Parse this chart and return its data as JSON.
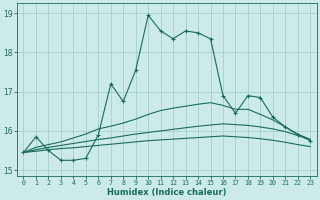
{
  "xlabel": "Humidex (Indice chaleur)",
  "xlim": [
    -0.5,
    23.5
  ],
  "ylim": [
    14.85,
    19.25
  ],
  "yticks": [
    15,
    16,
    17,
    18,
    19
  ],
  "xticks": [
    0,
    1,
    2,
    3,
    4,
    5,
    6,
    7,
    8,
    9,
    10,
    11,
    12,
    13,
    14,
    15,
    16,
    17,
    18,
    19,
    20,
    21,
    22,
    23
  ],
  "background_color": "#cceae7",
  "grid_color": "#aad4d0",
  "line_color": "#1a6b5e",
  "lines": [
    {
      "marker": true,
      "x": [
        0,
        1,
        2,
        3,
        4,
        5,
        6,
        7,
        8,
        9,
        10,
        11,
        12,
        13,
        14,
        15,
        16,
        17,
        18,
        19,
        20,
        21,
        22,
        23
      ],
      "y": [
        15.45,
        15.85,
        15.5,
        15.25,
        15.25,
        15.3,
        15.9,
        17.2,
        16.75,
        17.55,
        18.95,
        18.55,
        18.35,
        18.55,
        18.5,
        18.35,
        16.9,
        16.45,
        16.9,
        16.85,
        16.35,
        16.1,
        15.9,
        15.75
      ]
    },
    {
      "marker": false,
      "x": [
        0,
        1,
        2,
        3,
        4,
        5,
        6,
        7,
        8,
        9,
        10,
        11,
        12,
        13,
        14,
        15,
        16,
        17,
        18,
        19,
        20,
        21,
        22,
        23
      ],
      "y": [
        15.45,
        15.58,
        15.65,
        15.72,
        15.82,
        15.92,
        16.05,
        16.12,
        16.2,
        16.3,
        16.42,
        16.52,
        16.58,
        16.63,
        16.68,
        16.72,
        16.65,
        16.55,
        16.55,
        16.42,
        16.28,
        16.1,
        15.92,
        15.78
      ]
    },
    {
      "marker": false,
      "x": [
        0,
        1,
        2,
        3,
        4,
        5,
        6,
        7,
        8,
        9,
        10,
        11,
        12,
        13,
        14,
        15,
        16,
        17,
        18,
        19,
        20,
        21,
        22,
        23
      ],
      "y": [
        15.45,
        15.52,
        15.58,
        15.63,
        15.68,
        15.73,
        15.78,
        15.82,
        15.87,
        15.92,
        15.96,
        16.0,
        16.04,
        16.08,
        16.12,
        16.15,
        16.18,
        16.16,
        16.14,
        16.1,
        16.05,
        15.98,
        15.88,
        15.78
      ]
    },
    {
      "marker": false,
      "x": [
        0,
        1,
        2,
        3,
        4,
        5,
        6,
        7,
        8,
        9,
        10,
        11,
        12,
        13,
        14,
        15,
        16,
        17,
        18,
        19,
        20,
        21,
        22,
        23
      ],
      "y": [
        15.45,
        15.48,
        15.52,
        15.55,
        15.57,
        15.6,
        15.63,
        15.66,
        15.69,
        15.72,
        15.75,
        15.77,
        15.79,
        15.81,
        15.83,
        15.85,
        15.87,
        15.85,
        15.83,
        15.8,
        15.76,
        15.71,
        15.65,
        15.6
      ]
    }
  ]
}
